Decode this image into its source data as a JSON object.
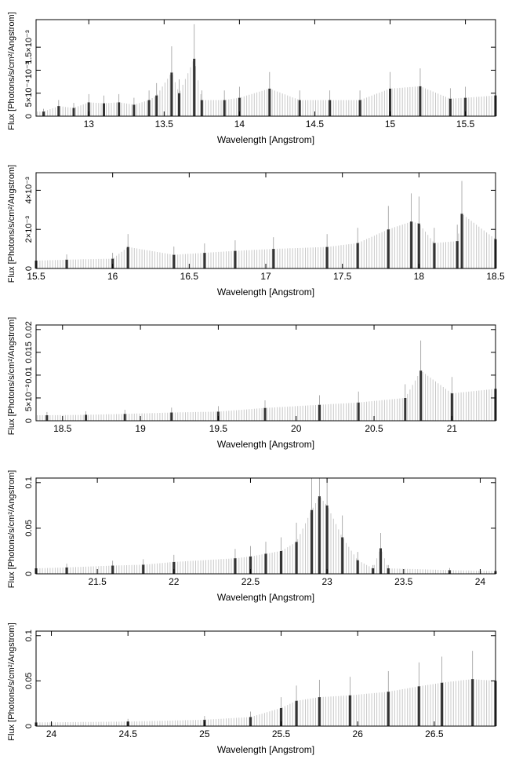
{
  "chart_data": [
    {
      "type": "line",
      "xlabel": "Wavelength [Angstrom]",
      "ylabel": "Flux [Photons/s/cm²/Angstrom]",
      "xlim": [
        12.65,
        15.7
      ],
      "ylim": [
        0,
        0.0021
      ],
      "xticks": [
        13,
        13.5,
        14,
        14.5,
        15,
        15.5
      ],
      "xtick_labels": [
        "13",
        "13.5",
        "14",
        "14.5",
        "15",
        "15.5"
      ],
      "yticks": [
        0,
        0.0005,
        0.001,
        0.0015
      ],
      "ytick_labels": [
        "0",
        "5×10⁻⁴",
        "10⁻³",
        "1.5×10⁻³"
      ],
      "series": [
        {
          "values": [
            [
              12.7,
              0.0001
            ],
            [
              12.8,
              0.00022
            ],
            [
              12.9,
              0.00018
            ],
            [
              13.0,
              0.0003
            ],
            [
              13.1,
              0.00028
            ],
            [
              13.2,
              0.0003
            ],
            [
              13.3,
              0.00025
            ],
            [
              13.4,
              0.00035
            ],
            [
              13.45,
              0.00045
            ],
            [
              13.55,
              0.00095
            ],
            [
              13.6,
              0.0005
            ],
            [
              13.7,
              0.00125
            ],
            [
              13.75,
              0.00035
            ],
            [
              13.9,
              0.00035
            ],
            [
              14.0,
              0.0004
            ],
            [
              14.2,
              0.0006
            ],
            [
              14.4,
              0.00035
            ],
            [
              14.6,
              0.00035
            ],
            [
              14.8,
              0.00035
            ],
            [
              15.0,
              0.0006
            ],
            [
              15.2,
              0.00065
            ],
            [
              15.4,
              0.00038
            ],
            [
              15.5,
              0.0004
            ],
            [
              15.7,
              0.00045
            ]
          ]
        }
      ]
    },
    {
      "type": "line",
      "xlabel": "Wavelength [Angstrom]",
      "ylabel": "Flux [Photons/s/cm²/Angstrom]",
      "xlim": [
        15.5,
        18.5
      ],
      "ylim": [
        0,
        0.0049
      ],
      "xticks": [
        15.5,
        16,
        16.5,
        17,
        17.5,
        18,
        18.5
      ],
      "xtick_labels": [
        "15.5",
        "16",
        "16.5",
        "17",
        "17.5",
        "18",
        "18.5"
      ],
      "yticks": [
        0,
        0.002,
        0.004
      ],
      "ytick_labels": [
        "0",
        "2×10⁻³",
        "4×10⁻³"
      ],
      "series": [
        {
          "values": [
            [
              15.5,
              0.0004
            ],
            [
              15.7,
              0.00045
            ],
            [
              16.0,
              0.0005
            ],
            [
              16.1,
              0.0011
            ],
            [
              16.4,
              0.0007
            ],
            [
              16.6,
              0.0008
            ],
            [
              16.8,
              0.0009
            ],
            [
              17.05,
              0.001
            ],
            [
              17.4,
              0.0011
            ],
            [
              17.6,
              0.0013
            ],
            [
              17.8,
              0.002
            ],
            [
              17.95,
              0.0024
            ],
            [
              18.0,
              0.0023
            ],
            [
              18.1,
              0.0013
            ],
            [
              18.25,
              0.0014
            ],
            [
              18.28,
              0.0028
            ],
            [
              18.5,
              0.0015
            ]
          ]
        }
      ]
    },
    {
      "type": "line",
      "xlabel": "Wavelength [Angstrom]",
      "ylabel": "Flux [Photons/s/cm²/Angstrom]",
      "xlim": [
        18.33,
        21.28
      ],
      "ylim": [
        0,
        0.021
      ],
      "xticks": [
        18.5,
        19,
        19.5,
        20,
        20.5,
        21
      ],
      "xtick_labels": [
        "18.5",
        "19",
        "19.5",
        "20",
        "20.5",
        "21"
      ],
      "yticks": [
        0,
        0.005,
        0.01,
        0.015,
        0.02
      ],
      "ytick_labels": [
        "0",
        "5×10⁻³",
        "0.01",
        "0.015",
        "0.02"
      ],
      "series": [
        {
          "values": [
            [
              18.4,
              0.0012
            ],
            [
              18.65,
              0.0013
            ],
            [
              18.9,
              0.0015
            ],
            [
              19.2,
              0.0018
            ],
            [
              19.5,
              0.002
            ],
            [
              19.8,
              0.0028
            ],
            [
              20.15,
              0.0035
            ],
            [
              20.4,
              0.004
            ],
            [
              20.7,
              0.005
            ],
            [
              20.8,
              0.011
            ],
            [
              21.0,
              0.006
            ],
            [
              21.28,
              0.007
            ]
          ]
        }
      ]
    },
    {
      "type": "line",
      "xlabel": "Wavelength [Angstrom]",
      "ylabel": "Flux [Photons/s/cm²/Angstrom]",
      "xlim": [
        21.1,
        24.1
      ],
      "ylim": [
        0,
        0.105
      ],
      "xticks": [
        21.5,
        22,
        22.5,
        23,
        23.5,
        24
      ],
      "xtick_labels": [
        "21.5",
        "22",
        "22.5",
        "23",
        "23.5",
        "24"
      ],
      "yticks": [
        0,
        0.05,
        0.1
      ],
      "ytick_labels": [
        "0",
        "0.05",
        "0.1"
      ],
      "series": [
        {
          "values": [
            [
              21.1,
              0.006
            ],
            [
              21.3,
              0.007
            ],
            [
              21.6,
              0.009
            ],
            [
              21.8,
              0.01
            ],
            [
              22.0,
              0.013
            ],
            [
              22.4,
              0.017
            ],
            [
              22.5,
              0.019
            ],
            [
              22.6,
              0.022
            ],
            [
              22.7,
              0.025
            ],
            [
              22.8,
              0.035
            ],
            [
              22.9,
              0.07
            ],
            [
              22.95,
              0.085
            ],
            [
              23.0,
              0.075
            ],
            [
              23.1,
              0.04
            ],
            [
              23.2,
              0.015
            ],
            [
              23.3,
              0.006
            ],
            [
              23.35,
              0.028
            ],
            [
              23.4,
              0.006
            ],
            [
              23.8,
              0.004
            ],
            [
              24.1,
              0.003
            ]
          ]
        }
      ]
    },
    {
      "type": "line",
      "xlabel": "Wavelength [Angstrom]",
      "ylabel": "Flux [Photons/s/cm²/Angstrom]",
      "xlim": [
        23.9,
        26.9
      ],
      "ylim": [
        0,
        0.105
      ],
      "xticks": [
        24,
        24.5,
        25,
        25.5,
        26,
        26.5
      ],
      "xtick_labels": [
        "24",
        "24.5",
        "25",
        "25.5",
        "26",
        "26.5"
      ],
      "yticks": [
        0,
        0.05,
        0.1
      ],
      "ytick_labels": [
        "0",
        "0.05",
        "0.1"
      ],
      "series": [
        {
          "values": [
            [
              23.9,
              0.004
            ],
            [
              24.5,
              0.005
            ],
            [
              25.0,
              0.007
            ],
            [
              25.3,
              0.01
            ],
            [
              25.5,
              0.02
            ],
            [
              25.6,
              0.028
            ],
            [
              25.75,
              0.032
            ],
            [
              25.95,
              0.034
            ],
            [
              26.2,
              0.038
            ],
            [
              26.4,
              0.044
            ],
            [
              26.55,
              0.048
            ],
            [
              26.75,
              0.052
            ],
            [
              26.9,
              0.05
            ]
          ]
        }
      ]
    }
  ]
}
